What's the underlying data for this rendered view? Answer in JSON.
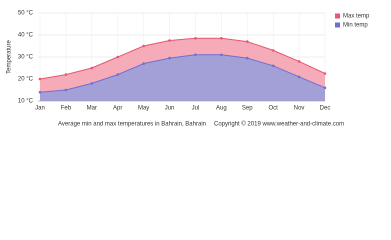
{
  "chart_data": {
    "type": "area",
    "y_label": "Temperature",
    "categories": [
      "Jan",
      "Feb",
      "Mar",
      "Apr",
      "May",
      "Jun",
      "Jul",
      "Aug",
      "Sep",
      "Oct",
      "Nov",
      "Dec"
    ],
    "series": [
      {
        "name": "Max temp",
        "color": "#e8576f",
        "fill": "#f6abb9",
        "values": [
          20,
          22,
          25,
          30,
          35,
          37.5,
          38.5,
          38.5,
          37,
          33,
          28,
          22.5
        ]
      },
      {
        "name": "Min temp",
        "color": "#6f6fd0",
        "fill": "#a3a0d8",
        "values": [
          14,
          15,
          18,
          22,
          27,
          29.5,
          31,
          31,
          29.5,
          26,
          21,
          16
        ]
      }
    ],
    "ylim": [
      10,
      50
    ],
    "yticks": [
      {
        "value": 10,
        "label": "10 °C"
      },
      {
        "value": 20,
        "label": "20 °C"
      },
      {
        "value": 30,
        "label": "30 °C"
      },
      {
        "value": 40,
        "label": "40 °C"
      },
      {
        "value": 50,
        "label": "50 °C"
      }
    ],
    "grid": true,
    "legend": "top-right",
    "caption": "Average min and max temperatures in Bahrain, Bahrain",
    "copyright": "Copyright © 2019 www.weather-and-climate.com"
  }
}
